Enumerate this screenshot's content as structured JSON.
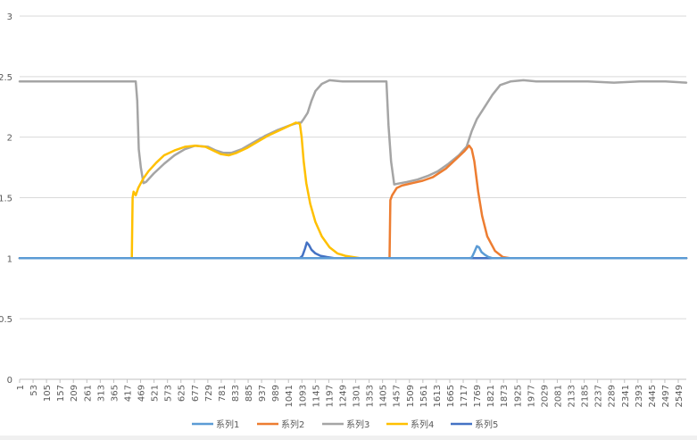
{
  "chart_data": {
    "type": "line",
    "title": "",
    "xlabel": "",
    "ylabel": "",
    "ylim": [
      0,
      3
    ],
    "yticks": [
      "0",
      "0.5",
      "1",
      "1.5",
      "2",
      "2.5",
      "3"
    ],
    "grid": true,
    "legend_position": "bottom",
    "x_range": [
      1,
      2580
    ],
    "x_ticks": [
      "1",
      "53",
      "105",
      "157",
      "209",
      "261",
      "313",
      "365",
      "417",
      "469",
      "521",
      "573",
      "625",
      "677",
      "729",
      "781",
      "833",
      "885",
      "937",
      "989",
      "1041",
      "1093",
      "1145",
      "1197",
      "1249",
      "1301",
      "1353",
      "1405",
      "1457",
      "1509",
      "1561",
      "1613",
      "1665",
      "1717",
      "1769",
      "1821",
      "1873",
      "1925",
      "1977",
      "2029",
      "2081",
      "2133",
      "2185",
      "2237",
      "2289",
      "2341",
      "2393",
      "2445",
      "2497",
      "2549"
    ],
    "series": [
      {
        "name": "系列1",
        "color": "#5B9BD5",
        "x": [
          1,
          1740,
          1750,
          1760,
          1770,
          1778,
          1788,
          1800,
          1815,
          1830,
          2580
        ],
        "values": [
          1.0,
          1.0,
          1.005,
          1.05,
          1.1,
          1.09,
          1.05,
          1.03,
          1.01,
          1.0,
          1.0
        ]
      },
      {
        "name": "系列2",
        "color": "#ED7D31",
        "x": [
          1,
          1425,
          1432,
          1435,
          1442,
          1460,
          1480,
          1520,
          1560,
          1600,
          1650,
          1690,
          1720,
          1740,
          1750,
          1760,
          1775,
          1790,
          1810,
          1840,
          1870,
          1900,
          2580
        ],
        "values": [
          1.0,
          1.0,
          1.0,
          1.48,
          1.52,
          1.58,
          1.6,
          1.62,
          1.64,
          1.67,
          1.74,
          1.82,
          1.88,
          1.93,
          1.9,
          1.8,
          1.55,
          1.35,
          1.18,
          1.06,
          1.01,
          1.0,
          1.0
        ]
      },
      {
        "name": "系列3",
        "color": "#A5A5A5",
        "x": [
          1,
          440,
          450,
          456,
          462,
          470,
          480,
          490,
          520,
          560,
          600,
          640,
          680,
          730,
          760,
          790,
          820,
          860,
          900,
          950,
          1000,
          1050,
          1080,
          1090,
          1100,
          1115,
          1130,
          1145,
          1170,
          1200,
          1250,
          1300,
          1350,
          1400,
          1420,
          1428,
          1438,
          1450,
          1475,
          1500,
          1540,
          1580,
          1620,
          1660,
          1700,
          1730,
          1750,
          1770,
          1800,
          1830,
          1860,
          1900,
          1950,
          2000,
          2100,
          2200,
          2300,
          2400,
          2500,
          2580
        ],
        "values": [
          2.46,
          2.46,
          2.46,
          2.3,
          1.9,
          1.75,
          1.62,
          1.63,
          1.7,
          1.78,
          1.85,
          1.9,
          1.93,
          1.92,
          1.89,
          1.87,
          1.87,
          1.9,
          1.95,
          2.01,
          2.06,
          2.1,
          2.12,
          2.12,
          2.15,
          2.2,
          2.3,
          2.38,
          2.44,
          2.47,
          2.46,
          2.46,
          2.46,
          2.46,
          2.46,
          2.1,
          1.8,
          1.61,
          1.62,
          1.63,
          1.65,
          1.68,
          1.72,
          1.78,
          1.85,
          1.92,
          2.05,
          2.15,
          2.25,
          2.35,
          2.43,
          2.46,
          2.47,
          2.46,
          2.46,
          2.46,
          2.45,
          2.46,
          2.46,
          2.45
        ]
      },
      {
        "name": "系列4",
        "color": "#FFC000",
        "x": [
          1,
          435,
          438,
          442,
          450,
          460,
          470,
          480,
          500,
          530,
          560,
          600,
          640,
          680,
          720,
          750,
          780,
          810,
          840,
          880,
          920,
          960,
          1000,
          1040,
          1070,
          1085,
          1092,
          1100,
          1110,
          1125,
          1145,
          1170,
          1200,
          1230,
          1260,
          1290,
          1320,
          1350,
          2580
        ],
        "values": [
          1.0,
          1.0,
          1.5,
          1.55,
          1.52,
          1.58,
          1.62,
          1.66,
          1.72,
          1.79,
          1.85,
          1.89,
          1.92,
          1.93,
          1.92,
          1.89,
          1.86,
          1.85,
          1.87,
          1.91,
          1.96,
          2.01,
          2.05,
          2.09,
          2.12,
          2.11,
          2.0,
          1.8,
          1.62,
          1.45,
          1.3,
          1.18,
          1.09,
          1.04,
          1.02,
          1.01,
          1.0,
          1.0,
          1.0
        ]
      },
      {
        "name": "系列5",
        "color": "#4472C4",
        "x": [
          1,
          1085,
          1095,
          1105,
          1112,
          1120,
          1130,
          1145,
          1165,
          1190,
          1220,
          2580
        ],
        "values": [
          1.0,
          1.0,
          1.02,
          1.08,
          1.13,
          1.11,
          1.07,
          1.04,
          1.02,
          1.01,
          1.0,
          1.0
        ]
      }
    ]
  }
}
